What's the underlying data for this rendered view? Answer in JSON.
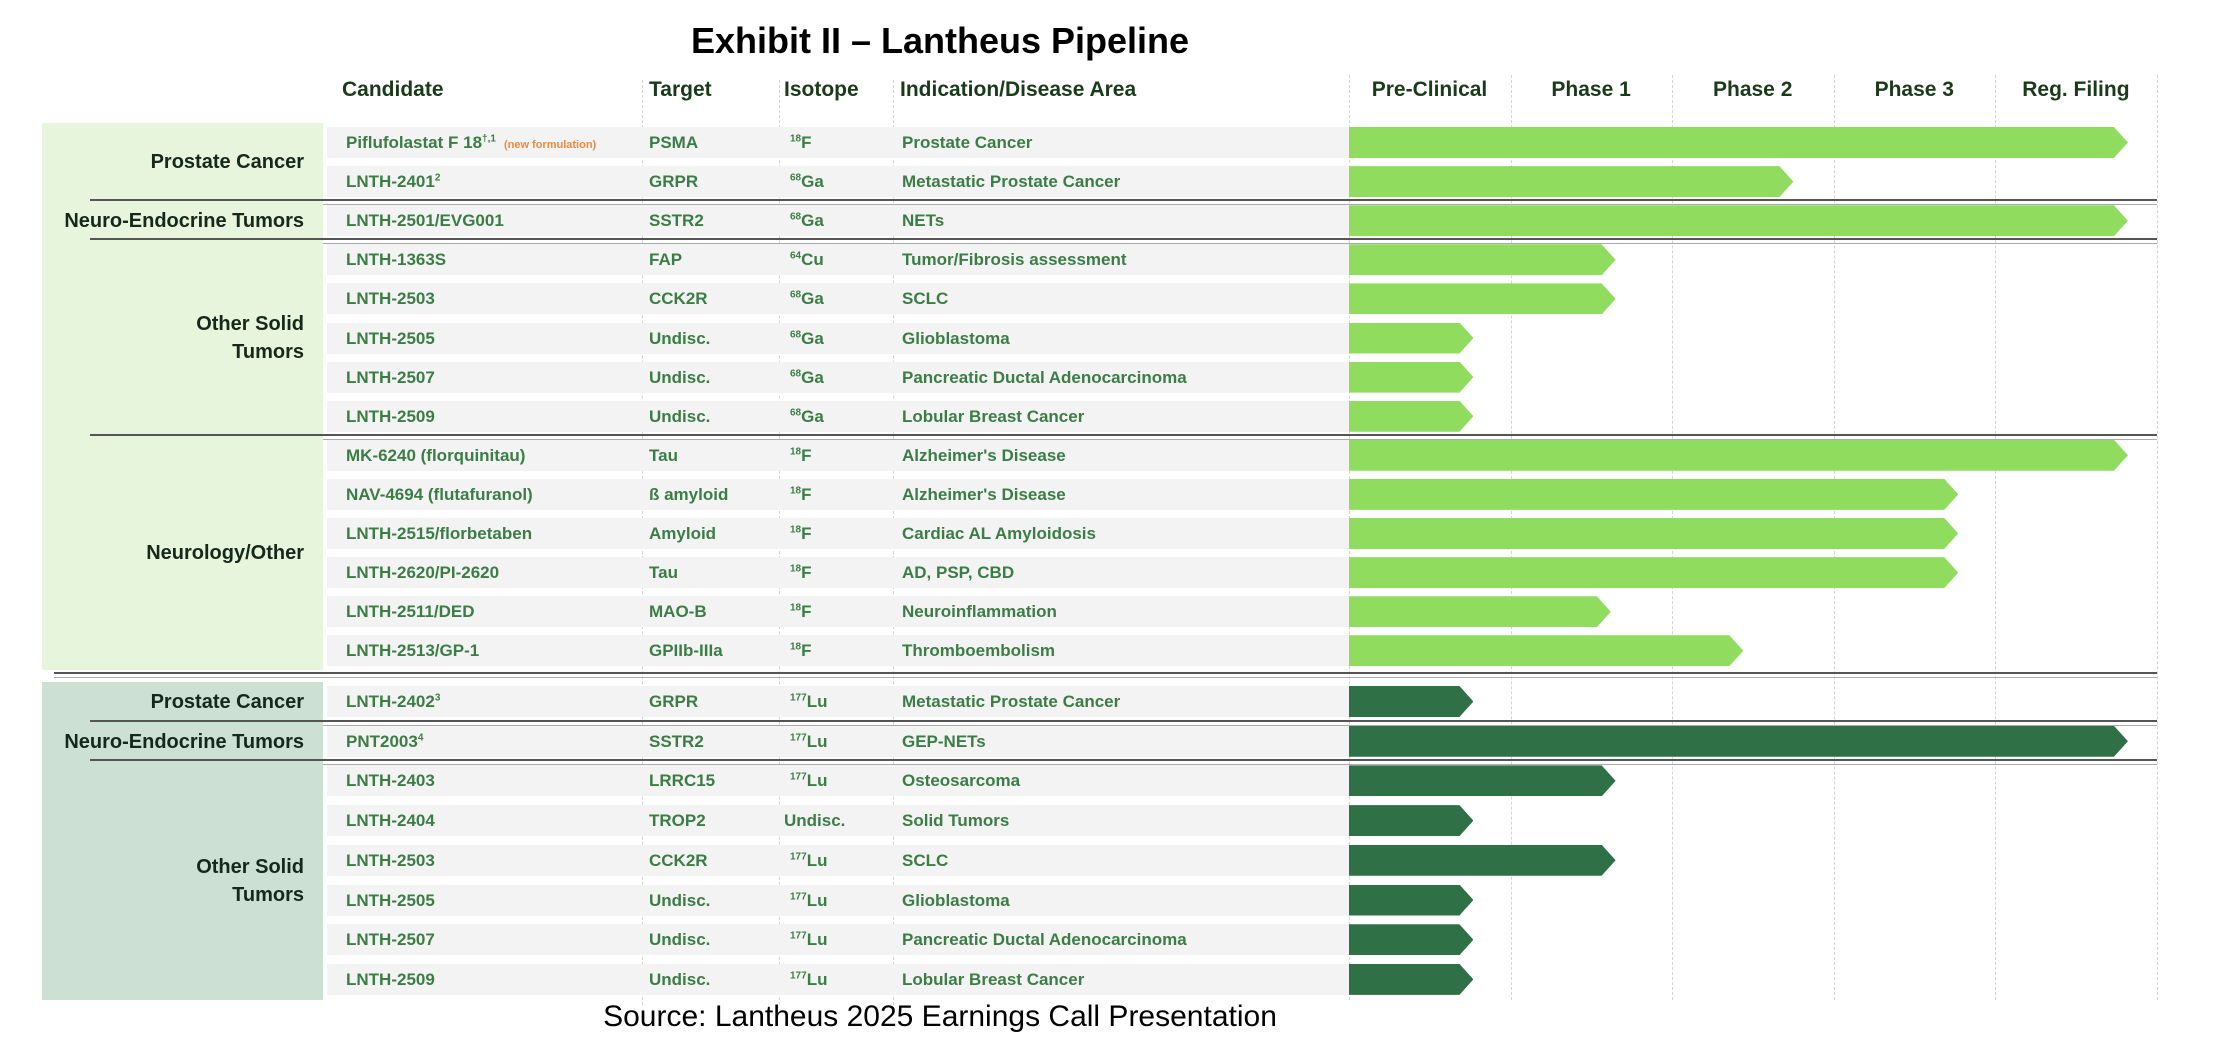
{
  "title": "Exhibit II – Lantheus Pipeline",
  "source": "Source: Lantheus 2025 Earnings Call Presentation",
  "columns": {
    "candidate": "Candidate",
    "target": "Target",
    "isotope": "Isotope",
    "indication": "Indication/Disease Area"
  },
  "phases": [
    "Pre-Clinical",
    "Phase 1",
    "Phase 2",
    "Phase 3",
    "Reg. Filing"
  ],
  "colors": {
    "diagnostic_bar": "#8fdc5f",
    "therapeutic_bar": "#2f7046",
    "diagnostic_category_bg": "#e6f5dc",
    "therapeutic_category_bg": "#cde0d4",
    "text_green": "#3b7d45",
    "note_orange": "#f08a3a"
  },
  "sections": [
    {
      "name": "diagnostics",
      "groups": [
        {
          "category": "Prostate Cancer",
          "rows": [
            {
              "candidate": "Piflufolastat F 18",
              "sup": "†,1",
              "note": "(new formulation)",
              "target": "PSMA",
              "iso_mass": "18",
              "iso_el": "F",
              "indication": "Prostate Cancer",
              "progress": 4.82
            },
            {
              "candidate": "LNTH-2401",
              "sup": "2",
              "target": "GRPR",
              "iso_mass": "68",
              "iso_el": "Ga",
              "indication": "Metastatic Prostate Cancer",
              "progress": 2.75
            }
          ]
        },
        {
          "category": "Neuro-Endocrine Tumors",
          "rows": [
            {
              "candidate": "LNTH-2501/EVG001",
              "target": "SSTR2",
              "iso_mass": "68",
              "iso_el": "Ga",
              "indication": "NETs",
              "progress": 4.82
            }
          ]
        },
        {
          "category": "Other Solid Tumors",
          "rows": [
            {
              "candidate": "LNTH-1363S",
              "target": "FAP",
              "iso_mass": "64",
              "iso_el": "Cu",
              "indication": "Tumor/Fibrosis assessment",
              "progress": 1.65
            },
            {
              "candidate": "LNTH-2503",
              "target": "CCK2R",
              "iso_mass": "68",
              "iso_el": "Ga",
              "indication": "SCLC",
              "progress": 1.65
            },
            {
              "candidate": "LNTH-2505",
              "target": "Undisc.",
              "iso_mass": "68",
              "iso_el": "Ga",
              "indication": "Glioblastoma",
              "progress": 0.77
            },
            {
              "candidate": "LNTH-2507",
              "target": "Undisc.",
              "iso_mass": "68",
              "iso_el": "Ga",
              "indication": "Pancreatic Ductal Adenocarcinoma",
              "progress": 0.77
            },
            {
              "candidate": "LNTH-2509",
              "target": "Undisc.",
              "iso_mass": "68",
              "iso_el": "Ga",
              "indication": "Lobular Breast Cancer",
              "progress": 0.77
            }
          ]
        },
        {
          "category": "Neurology/Other",
          "rows": [
            {
              "candidate": "MK-6240 (florquinitau)",
              "target": "Tau",
              "iso_mass": "18",
              "iso_el": "F",
              "indication": "Alzheimer's Disease",
              "progress": 4.82
            },
            {
              "candidate": "NAV-4694 (flutafuranol)",
              "target": "ß amyloid",
              "iso_mass": "18",
              "iso_el": "F",
              "indication": "Alzheimer's Disease",
              "progress": 3.77
            },
            {
              "candidate": "LNTH-2515/florbetaben",
              "target": "Amyloid",
              "iso_mass": "18",
              "iso_el": "F",
              "indication": "Cardiac AL Amyloidosis",
              "progress": 3.77
            },
            {
              "candidate": "LNTH-2620/PI-2620",
              "target": "Tau",
              "iso_mass": "18",
              "iso_el": "F",
              "indication": "AD, PSP, CBD",
              "progress": 3.77
            },
            {
              "candidate": "LNTH-2511/DED",
              "target": "MAO-B",
              "iso_mass": "18",
              "iso_el": "F",
              "indication": "Neuroinflammation",
              "progress": 1.62
            },
            {
              "candidate": "LNTH-2513/GP-1",
              "target": "GPIIb-IIIa",
              "iso_mass": "18",
              "iso_el": "F",
              "indication": "Thromboembolism",
              "progress": 2.44
            }
          ]
        }
      ]
    },
    {
      "name": "therapeutics",
      "groups": [
        {
          "category": "Prostate Cancer",
          "rows": [
            {
              "candidate": "LNTH-2402",
              "sup": "3",
              "target": "GRPR",
              "iso_mass": "177",
              "iso_el": "Lu",
              "indication": "Metastatic Prostate Cancer",
              "progress": 0.77
            }
          ]
        },
        {
          "category": "Neuro-Endocrine Tumors",
          "rows": [
            {
              "candidate": "PNT2003",
              "sup": "4",
              "target": "SSTR2",
              "iso_mass": "177",
              "iso_el": "Lu",
              "indication": "GEP-NETs",
              "progress": 4.82
            }
          ]
        },
        {
          "category": "Other Solid Tumors",
          "rows": [
            {
              "candidate": "LNTH-2403",
              "target": "LRRC15",
              "iso_mass": "177",
              "iso_el": "Lu",
              "indication": "Osteosarcoma",
              "progress": 1.65
            },
            {
              "candidate": "LNTH-2404",
              "target": "TROP2",
              "iso_mass": "",
              "iso_el": "Undisc.",
              "indication": "Solid Tumors",
              "progress": 0.77
            },
            {
              "candidate": "LNTH-2503",
              "target": "CCK2R",
              "iso_mass": "177",
              "iso_el": "Lu",
              "indication": "SCLC",
              "progress": 1.65
            },
            {
              "candidate": "LNTH-2505",
              "target": "Undisc.",
              "iso_mass": "177",
              "iso_el": "Lu",
              "indication": "Glioblastoma",
              "progress": 0.77
            },
            {
              "candidate": "LNTH-2507",
              "target": "Undisc.",
              "iso_mass": "177",
              "iso_el": "Lu",
              "indication": "Pancreatic Ductal Adenocarcinoma",
              "progress": 0.77
            },
            {
              "candidate": "LNTH-2509",
              "target": "Undisc.",
              "iso_mass": "177",
              "iso_el": "Lu",
              "indication": "Lobular Breast Cancer",
              "progress": 0.77
            }
          ]
        }
      ]
    }
  ]
}
